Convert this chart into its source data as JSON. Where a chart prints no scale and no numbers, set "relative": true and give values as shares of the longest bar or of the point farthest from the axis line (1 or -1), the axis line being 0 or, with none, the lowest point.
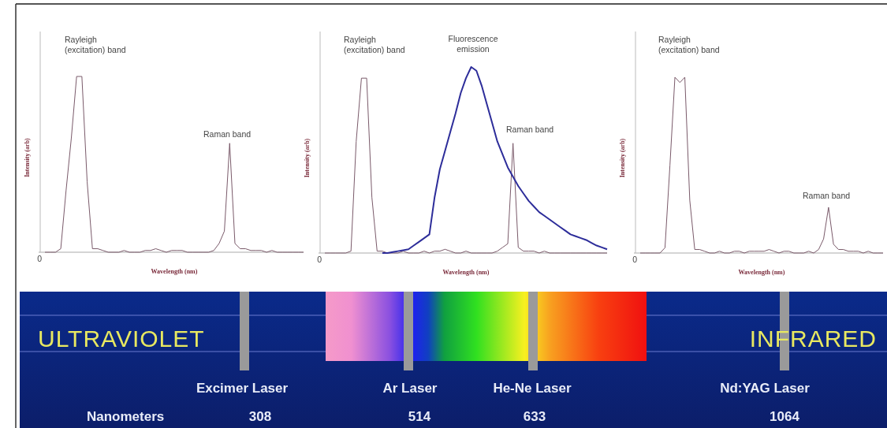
{
  "chart_data": [
    {
      "type": "line",
      "relative": true,
      "xlabel": "Wavelength (nm)",
      "ylabel": "Intensity (arb)",
      "categories": [
        null,
        null,
        null,
        null,
        null,
        null,
        null,
        null,
        null,
        null,
        null,
        null,
        null,
        null,
        null,
        null,
        null,
        null,
        null,
        null,
        null,
        null,
        null,
        null,
        null,
        null,
        null,
        null,
        null,
        null,
        null,
        null,
        null,
        null,
        null,
        null,
        null,
        null,
        null,
        null,
        null,
        null,
        null,
        null,
        null,
        null,
        null,
        null,
        null,
        null
      ],
      "series": [
        {
          "color": "#7a5a6a",
          "values": [
            0,
            0,
            0,
            0.02,
            0.35,
            0.65,
            1,
            1,
            0.4,
            0.02,
            0.02,
            0.01,
            0,
            0,
            0,
            0.01,
            0,
            0,
            0,
            0.01,
            0.01,
            0.02,
            0.01,
            0,
            0.01,
            0.01,
            0.01,
            0,
            0,
            0,
            0,
            0,
            0.01,
            0.05,
            0.12,
            0.62,
            0.05,
            0.02,
            0.02,
            0.01,
            0.01,
            0.01,
            0,
            0.01,
            0,
            0,
            0,
            0,
            0,
            0
          ]
        }
      ],
      "annotations": [
        "Rayleigh\n(excitation) band",
        "Raman band",
        "0"
      ]
    },
    {
      "type": "line",
      "relative": true,
      "xlabel": "Wavelength (nm)",
      "ylabel": "Intensity (arb)",
      "categories": [
        null,
        null,
        null,
        null,
        null,
        null,
        null,
        null,
        null,
        null,
        null,
        null,
        null,
        null,
        null,
        null,
        null,
        null,
        null,
        null,
        null,
        null,
        null,
        null,
        null,
        null,
        null,
        null,
        null,
        null,
        null,
        null,
        null,
        null,
        null,
        null,
        null,
        null,
        null,
        null,
        null,
        null,
        null,
        null,
        null,
        null,
        null,
        null,
        null,
        null,
        null,
        null,
        null,
        null,
        null
      ],
      "series": [
        {
          "color": "#7a5a6a",
          "values": [
            0,
            0,
            0,
            0,
            0,
            0.01,
            0.6,
            0.94,
            0.94,
            0.3,
            0.01,
            0.01,
            0,
            0,
            0,
            0.01,
            0,
            0,
            0,
            0.01,
            0,
            0.01,
            0.01,
            0.02,
            0.01,
            0,
            0,
            0.01,
            0,
            0,
            0,
            0,
            0,
            0.01,
            0.03,
            0.05,
            0.59,
            0.03,
            0.01,
            0.01,
            0.01,
            0,
            0.01,
            0,
            0,
            0,
            0,
            0,
            0,
            0,
            0,
            0,
            0,
            0,
            0
          ]
        },
        {
          "color": "#2d2d9a",
          "values": [
            null,
            null,
            null,
            null,
            null,
            null,
            null,
            null,
            null,
            null,
            null,
            0,
            0,
            0.005,
            0.01,
            0.015,
            0.02,
            0.04,
            0.06,
            0.08,
            0.1,
            0.3,
            0.45,
            0.55,
            0.65,
            0.75,
            0.86,
            0.94,
            1,
            0.98,
            0.9,
            0.8,
            0.7,
            0.6,
            0.53,
            0.46,
            0.41,
            0.36,
            0.32,
            0.28,
            0.25,
            0.22,
            0.2,
            0.18,
            0.16,
            0.14,
            0.12,
            0.1,
            0.09,
            0.08,
            0.07,
            0.055,
            0.04,
            0.03,
            0.02
          ]
        }
      ],
      "annotations": [
        "Rayleigh\n(excitation) band",
        "Fluorescence\nemission",
        "Raman band",
        "0"
      ]
    },
    {
      "type": "line",
      "relative": true,
      "xlabel": "Wavelength (nm)",
      "ylabel": "Intensity (arb)",
      "categories": [
        null,
        null,
        null,
        null,
        null,
        null,
        null,
        null,
        null,
        null,
        null,
        null,
        null,
        null,
        null,
        null,
        null,
        null,
        null,
        null,
        null,
        null,
        null,
        null,
        null,
        null,
        null,
        null,
        null,
        null,
        null,
        null,
        null,
        null,
        null,
        null,
        null,
        null,
        null,
        null,
        null,
        null,
        null,
        null,
        null,
        null,
        null,
        null,
        null,
        null
      ],
      "series": [
        {
          "color": "#7a5a6a",
          "values": [
            0,
            0,
            0,
            0,
            0,
            0.03,
            0.5,
            1,
            0.97,
            1,
            0.3,
            0.02,
            0.02,
            0.01,
            0,
            0,
            0.01,
            0,
            0,
            0.01,
            0.01,
            0,
            0.01,
            0.01,
            0.01,
            0.01,
            0.02,
            0.01,
            0,
            0.01,
            0.01,
            0,
            0,
            0,
            0.01,
            0,
            0.02,
            0.08,
            0.26,
            0.05,
            0.02,
            0.02,
            0.01,
            0.01,
            0.01,
            0,
            0.01,
            0,
            0,
            0
          ]
        }
      ],
      "annotations": [
        "Rayleigh\n(excitation) band",
        "Raman band",
        "0"
      ]
    },
    {
      "type": "other",
      "xlabel": "Nanometers",
      "categories": [
        "Excimer Laser",
        "Ar Laser",
        "He-Ne Laser",
        "Nd:YAG Laser"
      ],
      "values": [
        308,
        514,
        633,
        1064
      ],
      "data_labels": true,
      "annotations": [
        "ULTRAVIOLET",
        "INFRARED"
      ]
    }
  ]
}
